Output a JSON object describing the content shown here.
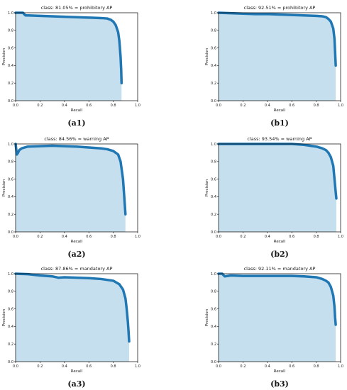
{
  "colors": {
    "line": "#1f77b4",
    "fill": "#c5dfee",
    "axis": "#000000",
    "background": "#ffffff"
  },
  "chart_data": [
    {
      "type": "area",
      "title": "class: 81.05% = prohibitory AP",
      "caption": "(a1)",
      "xlabel": "Recall",
      "ylabel": "Precision",
      "xlim": [
        0,
        1
      ],
      "ylim": [
        0,
        1
      ],
      "xticks": [
        "0.0",
        "0.2",
        "0.4",
        "0.6",
        "0.8",
        "1.0"
      ],
      "yticks": [
        "0.0",
        "0.2",
        "0.4",
        "0.6",
        "0.8",
        "1.0"
      ],
      "grid": false,
      "series": [
        {
          "x": [
            0.0,
            0.06,
            0.08,
            0.1,
            0.2,
            0.3,
            0.4,
            0.5,
            0.6,
            0.7,
            0.75,
            0.78,
            0.8,
            0.82,
            0.84,
            0.85,
            0.86,
            0.865,
            0.868
          ],
          "y": [
            1.0,
            1.0,
            0.97,
            0.97,
            0.965,
            0.96,
            0.955,
            0.95,
            0.945,
            0.94,
            0.935,
            0.92,
            0.9,
            0.86,
            0.78,
            0.68,
            0.5,
            0.35,
            0.2
          ]
        }
      ]
    },
    {
      "type": "area",
      "title": "class: 92.51% = prohibitory AP",
      "caption": "(b1)",
      "xlabel": "Recall",
      "ylabel": "Precision",
      "xlim": [
        0,
        1
      ],
      "ylim": [
        0,
        1
      ],
      "xticks": [
        "0.0",
        "0.2",
        "0.4",
        "0.6",
        "0.8",
        "1.0"
      ],
      "yticks": [
        "0.0",
        "0.2",
        "0.4",
        "0.6",
        "0.8",
        "1.0"
      ],
      "grid": false,
      "series": [
        {
          "x": [
            0.0,
            0.1,
            0.2,
            0.3,
            0.4,
            0.5,
            0.6,
            0.7,
            0.8,
            0.85,
            0.88,
            0.9,
            0.92,
            0.94,
            0.95,
            0.955,
            0.96
          ],
          "y": [
            1.0,
            0.995,
            0.99,
            0.985,
            0.985,
            0.98,
            0.975,
            0.97,
            0.965,
            0.96,
            0.95,
            0.93,
            0.9,
            0.82,
            0.7,
            0.55,
            0.4
          ]
        }
      ]
    },
    {
      "type": "area",
      "title": "class: 84.56% = warning AP",
      "caption": "(a2)",
      "xlabel": "Recall",
      "ylabel": "Precision",
      "xlim": [
        0,
        1
      ],
      "ylim": [
        0,
        1
      ],
      "xticks": [
        "0.0",
        "0.2",
        "0.4",
        "0.6",
        "0.8",
        "1.0"
      ],
      "yticks": [
        "0.0",
        "0.2",
        "0.4",
        "0.6",
        "0.8",
        "1.0"
      ],
      "grid": false,
      "series": [
        {
          "x": [
            0.0,
            0.01,
            0.02,
            0.03,
            0.05,
            0.1,
            0.2,
            0.3,
            0.4,
            0.5,
            0.6,
            0.7,
            0.75,
            0.8,
            0.84,
            0.86,
            0.88,
            0.89,
            0.9
          ],
          "y": [
            1.0,
            0.88,
            0.9,
            0.93,
            0.95,
            0.97,
            0.975,
            0.98,
            0.975,
            0.97,
            0.96,
            0.95,
            0.94,
            0.92,
            0.88,
            0.8,
            0.6,
            0.4,
            0.2
          ]
        }
      ]
    },
    {
      "type": "area",
      "title": "class: 93.54% = warning AP",
      "caption": "(b2)",
      "xlabel": "Recall",
      "ylabel": "Precision",
      "xlim": [
        0,
        1
      ],
      "ylim": [
        0,
        1
      ],
      "xticks": [
        "0.0",
        "0.2",
        "0.4",
        "0.6",
        "0.8",
        "1.0"
      ],
      "yticks": [
        "0.0",
        "0.2",
        "0.4",
        "0.6",
        "0.8",
        "1.0"
      ],
      "grid": false,
      "series": [
        {
          "x": [
            0.0,
            0.1,
            0.2,
            0.3,
            0.4,
            0.5,
            0.6,
            0.7,
            0.75,
            0.8,
            0.85,
            0.88,
            0.9,
            0.92,
            0.94,
            0.95,
            0.96,
            0.965
          ],
          "y": [
            1.0,
            1.0,
            1.0,
            1.0,
            1.0,
            1.0,
            1.0,
            0.99,
            0.98,
            0.97,
            0.95,
            0.93,
            0.9,
            0.85,
            0.75,
            0.6,
            0.45,
            0.38
          ]
        }
      ]
    },
    {
      "type": "area",
      "title": "class: 87.86% = mandatory AP",
      "caption": "(a3)",
      "xlabel": "Recall",
      "ylabel": "Precision",
      "xlim": [
        0,
        1
      ],
      "ylim": [
        0,
        1
      ],
      "xticks": [
        "0.0",
        "0.2",
        "0.4",
        "0.6",
        "0.8",
        "1.0"
      ],
      "yticks": [
        "0.0",
        "0.2",
        "0.4",
        "0.6",
        "0.8",
        "1.0"
      ],
      "grid": false,
      "series": [
        {
          "x": [
            0.0,
            0.1,
            0.2,
            0.3,
            0.35,
            0.4,
            0.5,
            0.6,
            0.7,
            0.8,
            0.85,
            0.88,
            0.9,
            0.91,
            0.92,
            0.925,
            0.93
          ],
          "y": [
            1.0,
            0.995,
            0.98,
            0.97,
            0.955,
            0.96,
            0.955,
            0.95,
            0.94,
            0.92,
            0.88,
            0.82,
            0.72,
            0.6,
            0.45,
            0.35,
            0.23
          ]
        }
      ]
    },
    {
      "type": "area",
      "title": "class: 92.11% = mandatory AP",
      "caption": "(b3)",
      "xlabel": "Recall",
      "ylabel": "Precision",
      "xlim": [
        0,
        1
      ],
      "ylim": [
        0,
        1
      ],
      "xticks": [
        "0.0",
        "0.2",
        "0.4",
        "0.6",
        "0.8",
        "1.0"
      ],
      "yticks": [
        "0.0",
        "0.2",
        "0.4",
        "0.6",
        "0.8",
        "1.0"
      ],
      "grid": false,
      "series": [
        {
          "x": [
            0.0,
            0.03,
            0.05,
            0.1,
            0.2,
            0.3,
            0.4,
            0.5,
            0.6,
            0.7,
            0.8,
            0.85,
            0.88,
            0.9,
            0.92,
            0.94,
            0.95,
            0.955,
            0.96
          ],
          "y": [
            1.0,
            1.0,
            0.97,
            0.98,
            0.975,
            0.975,
            0.975,
            0.975,
            0.975,
            0.97,
            0.96,
            0.94,
            0.92,
            0.9,
            0.85,
            0.75,
            0.62,
            0.5,
            0.42
          ]
        }
      ]
    }
  ]
}
